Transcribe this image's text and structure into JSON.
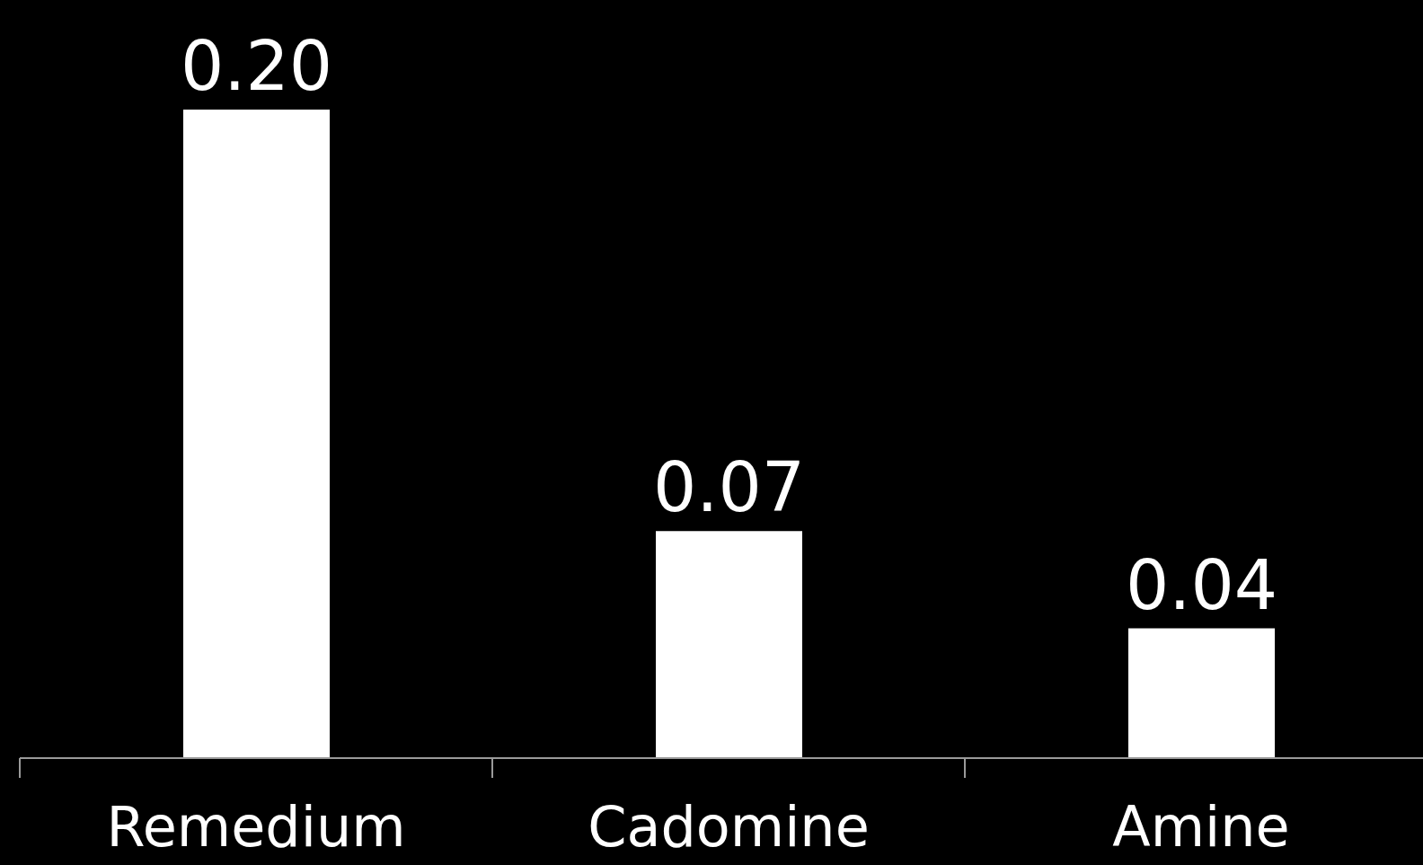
{
  "chart_data": {
    "type": "bar",
    "categories": [
      "Remedium",
      "Cadomine",
      "Amine"
    ],
    "values": [
      0.2,
      0.07,
      0.04
    ],
    "value_labels": [
      "0.20",
      "0.07",
      "0.04"
    ],
    "color": "#ffffff"
  }
}
